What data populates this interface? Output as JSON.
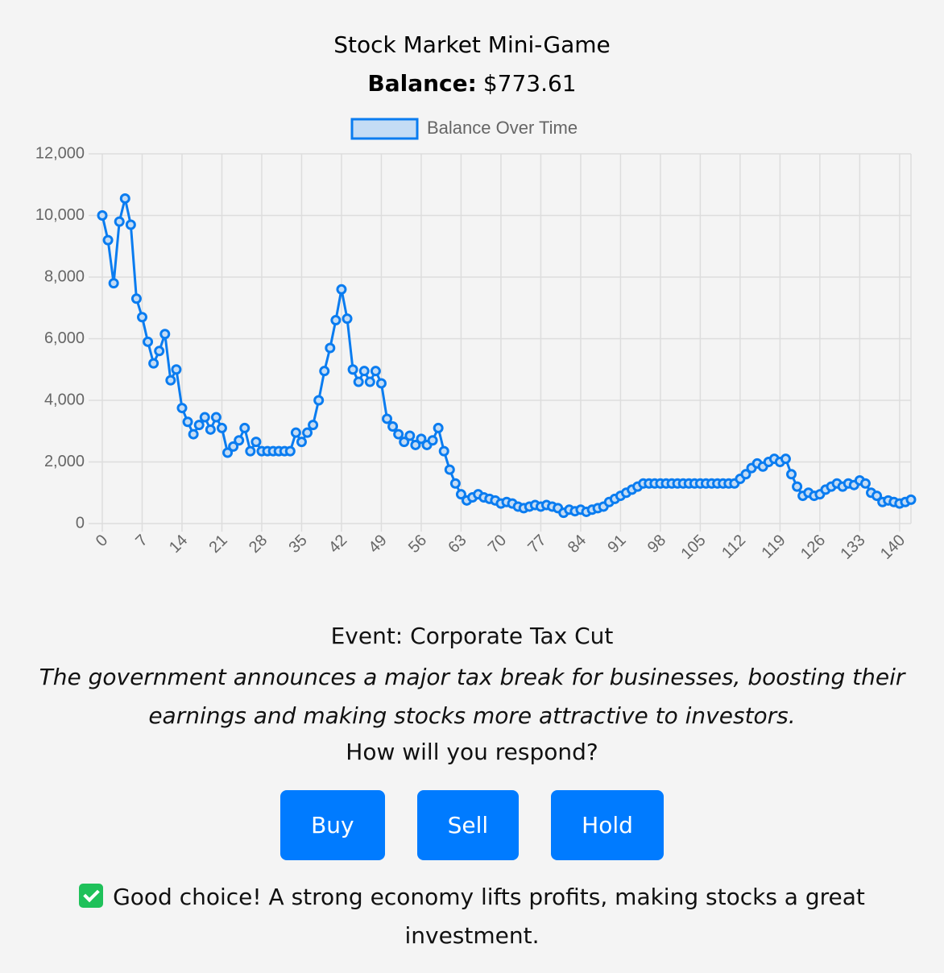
{
  "header": {
    "title": "Stock Market Mini-Game",
    "balance_label": "Balance:",
    "balance_value": "$773.61"
  },
  "chart_data": {
    "type": "line",
    "x": [
      0,
      1,
      2,
      3,
      4,
      5,
      6,
      7,
      8,
      9,
      10,
      11,
      12,
      13,
      14,
      15,
      16,
      17,
      18,
      19,
      20,
      21,
      22,
      23,
      24,
      25,
      26,
      27,
      28,
      29,
      30,
      31,
      32,
      33,
      34,
      35,
      36,
      37,
      38,
      39,
      40,
      41,
      42,
      43,
      44,
      45,
      46,
      47,
      48,
      49,
      50,
      51,
      52,
      53,
      54,
      55,
      56,
      57,
      58,
      59,
      60,
      61,
      62,
      63,
      64,
      65,
      66,
      67,
      68,
      69,
      70,
      71,
      72,
      73,
      74,
      75,
      76,
      77,
      78,
      79,
      80,
      81,
      82,
      83,
      84,
      85,
      86,
      87,
      88,
      89,
      90,
      91,
      92,
      93,
      94,
      95,
      96,
      97,
      98,
      99,
      100,
      101,
      102,
      103,
      104,
      105,
      106,
      107,
      108,
      109,
      110,
      111,
      112,
      113,
      114,
      115,
      116,
      117,
      118,
      119,
      120,
      121,
      122,
      123,
      124,
      125,
      126,
      127,
      128,
      129,
      130,
      131,
      132,
      133,
      134,
      135,
      136,
      137,
      138,
      139,
      140,
      141,
      142
    ],
    "series": [
      {
        "name": "Balance Over Time",
        "color": "#0a7cf0",
        "values": [
          10000,
          9200,
          7800,
          9800,
          10550,
          9700,
          7300,
          6700,
          5900,
          5200,
          5600,
          6150,
          4650,
          5000,
          3750,
          3300,
          2900,
          3200,
          3450,
          3050,
          3450,
          3100,
          2300,
          2500,
          2700,
          3100,
          2350,
          2650,
          2350,
          2350,
          2350,
          2350,
          2350,
          2350,
          2950,
          2650,
          2950,
          3200,
          4000,
          4950,
          5700,
          6600,
          7600,
          6650,
          5000,
          4600,
          4950,
          4600,
          4950,
          4550,
          3400,
          3150,
          2900,
          2650,
          2850,
          2550,
          2750,
          2550,
          2700,
          3100,
          2350,
          1750,
          1300,
          950,
          750,
          850,
          950,
          850,
          800,
          750,
          650,
          700,
          650,
          550,
          500,
          550,
          600,
          550,
          600,
          550,
          500,
          350,
          450,
          400,
          450,
          380,
          450,
          500,
          550,
          700,
          800,
          900,
          1000,
          1100,
          1200,
          1300,
          1300,
          1300,
          1300,
          1300,
          1300,
          1300,
          1300,
          1300,
          1300,
          1300,
          1300,
          1300,
          1300,
          1300,
          1300,
          1300,
          1450,
          1600,
          1800,
          1950,
          1850,
          2000,
          2100,
          2000,
          2100,
          1600,
          1200,
          900,
          1000,
          900,
          950,
          1100,
          1200,
          1300,
          1200,
          1300,
          1250,
          1400,
          1300,
          1000,
          900,
          700,
          750,
          700,
          650,
          700,
          774
        ]
      }
    ],
    "xlim": [
      0,
      142
    ],
    "xticks": [
      0,
      7,
      14,
      21,
      28,
      35,
      42,
      49,
      56,
      63,
      70,
      77,
      84,
      91,
      98,
      105,
      112,
      119,
      126,
      133,
      140
    ],
    "ylim": [
      0,
      12000
    ],
    "yticks": [
      0,
      {
        "value": 2000,
        "label": "2,000"
      },
      {
        "value": 4000,
        "label": "4,000"
      },
      {
        "value": 6000,
        "label": "6,000"
      },
      {
        "value": 8000,
        "label": "8,000"
      },
      {
        "value": 10000,
        "label": "10,000"
      },
      {
        "value": 12000,
        "label": "12,000"
      }
    ],
    "grid": true,
    "legend": "top"
  },
  "event": {
    "title": "Event: Corporate Tax Cut",
    "description": "The government announces a major tax break for businesses, boosting their earnings and making stocks more attractive to investors.",
    "prompt": "How will you respond?"
  },
  "buttons": [
    "Buy",
    "Sell",
    "Hold"
  ],
  "feedback": "Good choice! A strong economy lifts profits, making stocks a great investment."
}
